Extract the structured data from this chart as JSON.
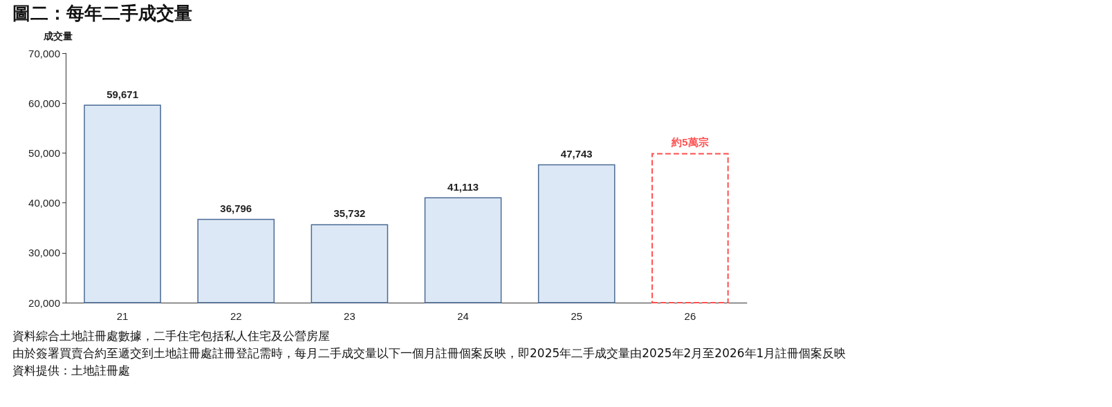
{
  "chart_data": {
    "type": "bar",
    "title": "圖二：每年二手成交量",
    "ylabel": "成交量",
    "categories": [
      "21",
      "22",
      "23",
      "24",
      "25",
      "26"
    ],
    "series": [
      {
        "color": "#dce8f5",
        "values": [
          59671,
          36796,
          35732,
          41113,
          47743,
          null
        ],
        "value_labels": [
          "59,671",
          "36,796",
          "35,732",
          "41,113",
          "47,743",
          null
        ]
      },
      {
        "color": "#ff4d4d",
        "line_style": "dashed",
        "values": [
          null,
          null,
          null,
          null,
          null,
          50000
        ],
        "value_labels": [
          null,
          null,
          null,
          null,
          null,
          "約5萬宗"
        ]
      }
    ],
    "ylim": [
      20000,
      70000
    ],
    "yticks": [
      {
        "value": 20000,
        "label": "20,000"
      },
      {
        "value": 30000,
        "label": "30,000"
      },
      {
        "value": 40000,
        "label": "40,000"
      },
      {
        "value": 50000,
        "label": "50,000"
      },
      {
        "value": 60000,
        "label": "60,000"
      },
      {
        "value": 70000,
        "label": "70,000"
      }
    ],
    "grid": false,
    "annotations": [
      "資料綜合土地註冊處數據，二手住宅包括私人住宅及公營房屋",
      "由於簽署買賣合約至遞交到土地註冊處註冊登記需時，每月二手成交量以下一個月註冊個案反映，即2025年二手成交量由2025年2月至2026年1月註冊個案反映",
      "資料提供：土地註冊處"
    ]
  }
}
